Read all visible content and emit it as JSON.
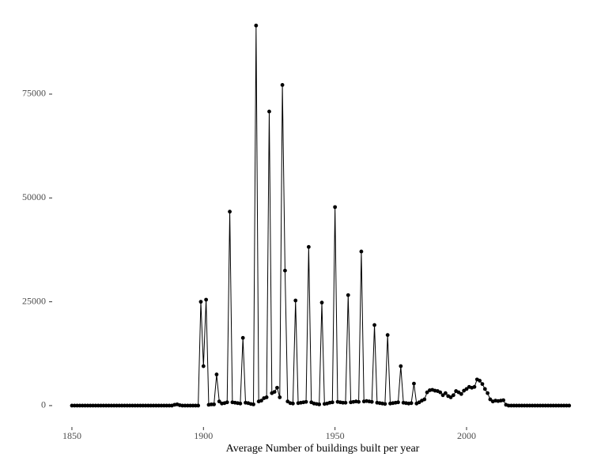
{
  "chart_data": {
    "type": "line",
    "x_label": "Average Number of buildings built per year",
    "color": "#000000",
    "marker": "circle",
    "x": [
      1850,
      1851,
      1852,
      1853,
      1854,
      1855,
      1856,
      1857,
      1858,
      1859,
      1860,
      1861,
      1862,
      1863,
      1864,
      1865,
      1866,
      1867,
      1868,
      1869,
      1870,
      1871,
      1872,
      1873,
      1874,
      1875,
      1876,
      1877,
      1878,
      1879,
      1880,
      1881,
      1882,
      1883,
      1884,
      1885,
      1886,
      1887,
      1888,
      1889,
      1890,
      1891,
      1892,
      1893,
      1894,
      1895,
      1896,
      1897,
      1898,
      1899,
      1900,
      1901,
      1902,
      1903,
      1904,
      1905,
      1906,
      1907,
      1908,
      1909,
      1910,
      1911,
      1912,
      1913,
      1914,
      1915,
      1916,
      1917,
      1918,
      1919,
      1920,
      1921,
      1922,
      1923,
      1924,
      1925,
      1926,
      1927,
      1928,
      1929,
      1930,
      1931,
      1932,
      1933,
      1934,
      1935,
      1936,
      1937,
      1938,
      1939,
      1940,
      1941,
      1942,
      1943,
      1944,
      1945,
      1946,
      1947,
      1948,
      1949,
      1950,
      1951,
      1952,
      1953,
      1954,
      1955,
      1956,
      1957,
      1958,
      1959,
      1960,
      1961,
      1962,
      1963,
      1964,
      1965,
      1966,
      1967,
      1968,
      1969,
      1970,
      1971,
      1972,
      1973,
      1974,
      1975,
      1976,
      1977,
      1978,
      1979,
      1980,
      1981,
      1982,
      1983,
      1984,
      1985,
      1986,
      1987,
      1988,
      1989,
      1990,
      1991,
      1992,
      1993,
      1994,
      1995,
      1996,
      1997,
      1998,
      1999,
      2000,
      2001,
      2002,
      2003,
      2004,
      2005,
      2006,
      2007,
      2008,
      2009,
      2010,
      2011,
      2012,
      2013,
      2014,
      2015,
      2016,
      2017,
      2018,
      2019,
      2020,
      2021,
      2022,
      2023,
      2024,
      2025,
      2026,
      2027,
      2028,
      2029,
      2030,
      2031,
      2032,
      2033,
      2034,
      2035,
      2036,
      2037,
      2038,
      2039
    ],
    "values": [
      0,
      0,
      0,
      0,
      0,
      0,
      0,
      0,
      0,
      0,
      0,
      0,
      0,
      0,
      0,
      0,
      0,
      0,
      0,
      0,
      0,
      0,
      0,
      0,
      0,
      0,
      0,
      0,
      0,
      0,
      0,
      0,
      0,
      0,
      0,
      0,
      0,
      0,
      0,
      200,
      300,
      100,
      0,
      0,
      0,
      0,
      0,
      0,
      0,
      25000,
      9500,
      25500,
      200,
      300,
      300,
      7500,
      1000,
      500,
      600,
      800,
      46700,
      800,
      700,
      600,
      500,
      16300,
      700,
      600,
      400,
      300,
      91500,
      1000,
      1200,
      1800,
      2000,
      70800,
      3000,
      3300,
      4300,
      2000,
      77200,
      32500,
      1000,
      600,
      500,
      25300,
      600,
      700,
      800,
      900,
      38200,
      800,
      500,
      400,
      300,
      24800,
      400,
      500,
      700,
      800,
      47800,
      900,
      800,
      700,
      700,
      26600,
      800,
      900,
      1000,
      900,
      37100,
      1000,
      1100,
      1000,
      900,
      19400,
      700,
      600,
      500,
      400,
      17000,
      500,
      600,
      700,
      800,
      9500,
      700,
      600,
      500,
      600,
      5300,
      500,
      800,
      1200,
      1500,
      3200,
      3700,
      3800,
      3600,
      3500,
      3200,
      2500,
      3000,
      2300,
      2000,
      2500,
      3500,
      3200,
      2800,
      3600,
      4000,
      4500,
      4300,
      4500,
      6300,
      6000,
      5200,
      4000,
      3000,
      1500,
      1000,
      1200,
      1100,
      1200,
      1300,
      200,
      0,
      0,
      0,
      0,
      0,
      0,
      0,
      0,
      0,
      0,
      0,
      0,
      0,
      0,
      0,
      0,
      0,
      0,
      0,
      0,
      0,
      0,
      0,
      0
    ],
    "xlim": [
      1841.3,
      2049.6
    ],
    "ylim": [
      -5150,
      95750
    ],
    "xticks": [
      1850,
      1900,
      1950,
      2000
    ],
    "yticks": [
      0,
      25000,
      50000,
      75000
    ],
    "grid": false
  }
}
